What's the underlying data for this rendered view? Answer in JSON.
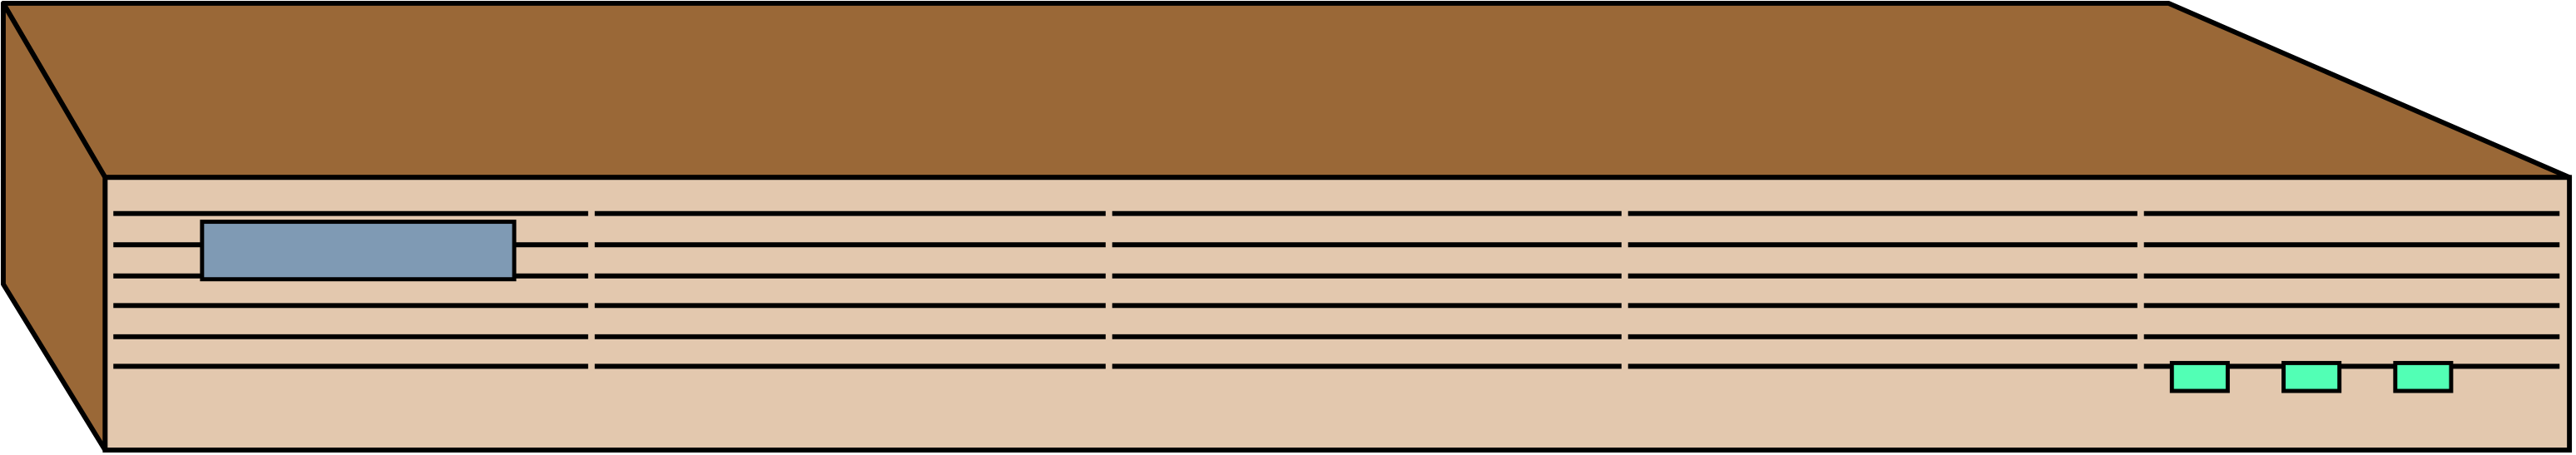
{
  "device": {
    "kind": "network-device-chassis",
    "colors": {
      "case": "#9a6837",
      "front_panel": "#e3c8ae",
      "outline": "#000000",
      "display": "#7f9ab4",
      "led": "#52ffb5"
    },
    "vent_rows": 6,
    "vent_segments": 5,
    "leds": [
      {
        "name": "led-1",
        "state": "on"
      },
      {
        "name": "led-2",
        "state": "on"
      },
      {
        "name": "led-3",
        "state": "on"
      }
    ]
  }
}
